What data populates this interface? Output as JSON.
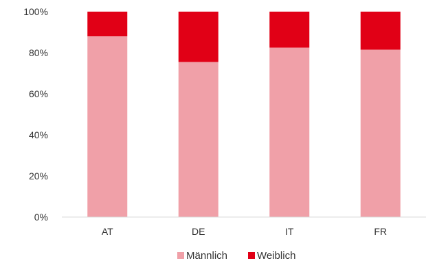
{
  "chart_data": {
    "type": "bar",
    "stacked": true,
    "percent": true,
    "categories": [
      "AT",
      "DE",
      "IT",
      "FR"
    ],
    "series": [
      {
        "name": "Männlich",
        "values": [
          88,
          75.5,
          82.5,
          81.5
        ],
        "color": "#F0A0A8"
      },
      {
        "name": "Weiblich",
        "values": [
          12,
          24.5,
          17.5,
          18.5
        ],
        "color": "#E10016"
      }
    ],
    "y_ticks": [
      "0%",
      "20%",
      "40%",
      "60%",
      "80%",
      "100%"
    ],
    "ylim": [
      0,
      100
    ],
    "grid": false,
    "legend_position": "bottom"
  }
}
